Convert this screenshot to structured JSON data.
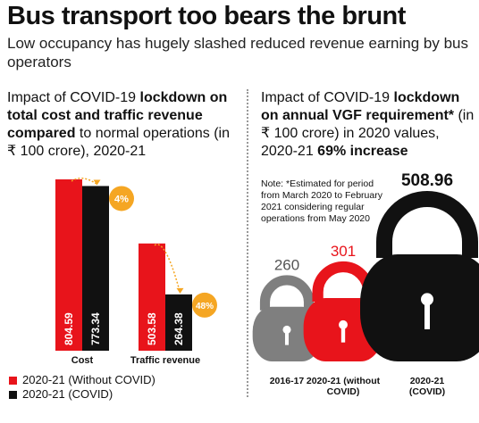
{
  "title": "Bus transport too bears the brunt",
  "subtitle": "Low occupancy has hugely slashed reduced revenue earning by bus operators",
  "left_panel": {
    "heading_pre": "Impact of COVID-19 ",
    "heading_bold1": "lockdown on total cost and traffic revenue compared",
    "heading_mid": " to normal operations (in ₹ 100 crore), 2020-21"
  },
  "right_panel": {
    "heading_pre": "Impact of COVID-19 ",
    "heading_bold1": "lockdown on annual VGF requirement*",
    "heading_mid": " (in ₹ 100 crore) in 2020 values, 2020-21 ",
    "heading_bold2": "69% increase",
    "note": "Note: *Estimated for period from March 2020 to February 2021 considering regular operations from May 2020"
  },
  "legend": [
    {
      "label": "2020-21 (Without COVID)",
      "color": "#e8141b"
    },
    {
      "label": "2020-21 (COVID)",
      "color": "#111111"
    }
  ],
  "colors": {
    "red": "#e8141b",
    "black": "#111111",
    "grey": "#7f7f7f",
    "orange": "#f5a623"
  },
  "chart_data": [
    {
      "type": "bar",
      "categories": [
        "Cost",
        "Traffic revenue"
      ],
      "series": [
        {
          "name": "2020-21 (Without COVID)",
          "values": [
            804.59,
            503.58
          ]
        },
        {
          "name": "2020-21 (COVID)",
          "values": [
            773.34,
            264.38
          ]
        }
      ],
      "value_labels": [
        [
          "804.59",
          "773.34"
        ],
        [
          "503.58",
          "264.38"
        ]
      ],
      "change_badges": [
        "4%",
        "48%"
      ],
      "ylim": [
        0,
        880
      ]
    },
    {
      "type": "bar",
      "categories": [
        "2016-17",
        "2020-21 (without COVID)",
        "2020-21 (COVID)"
      ],
      "category_lines": [
        [
          "2016-17"
        ],
        [
          "2020-21 (without",
          "COVID)"
        ],
        [
          "2020-21",
          "(COVID)"
        ]
      ],
      "values": [
        260,
        301,
        508.96
      ],
      "value_labels": [
        "260",
        "301",
        "508.96"
      ],
      "colors": [
        "grey",
        "red",
        "black"
      ]
    }
  ]
}
